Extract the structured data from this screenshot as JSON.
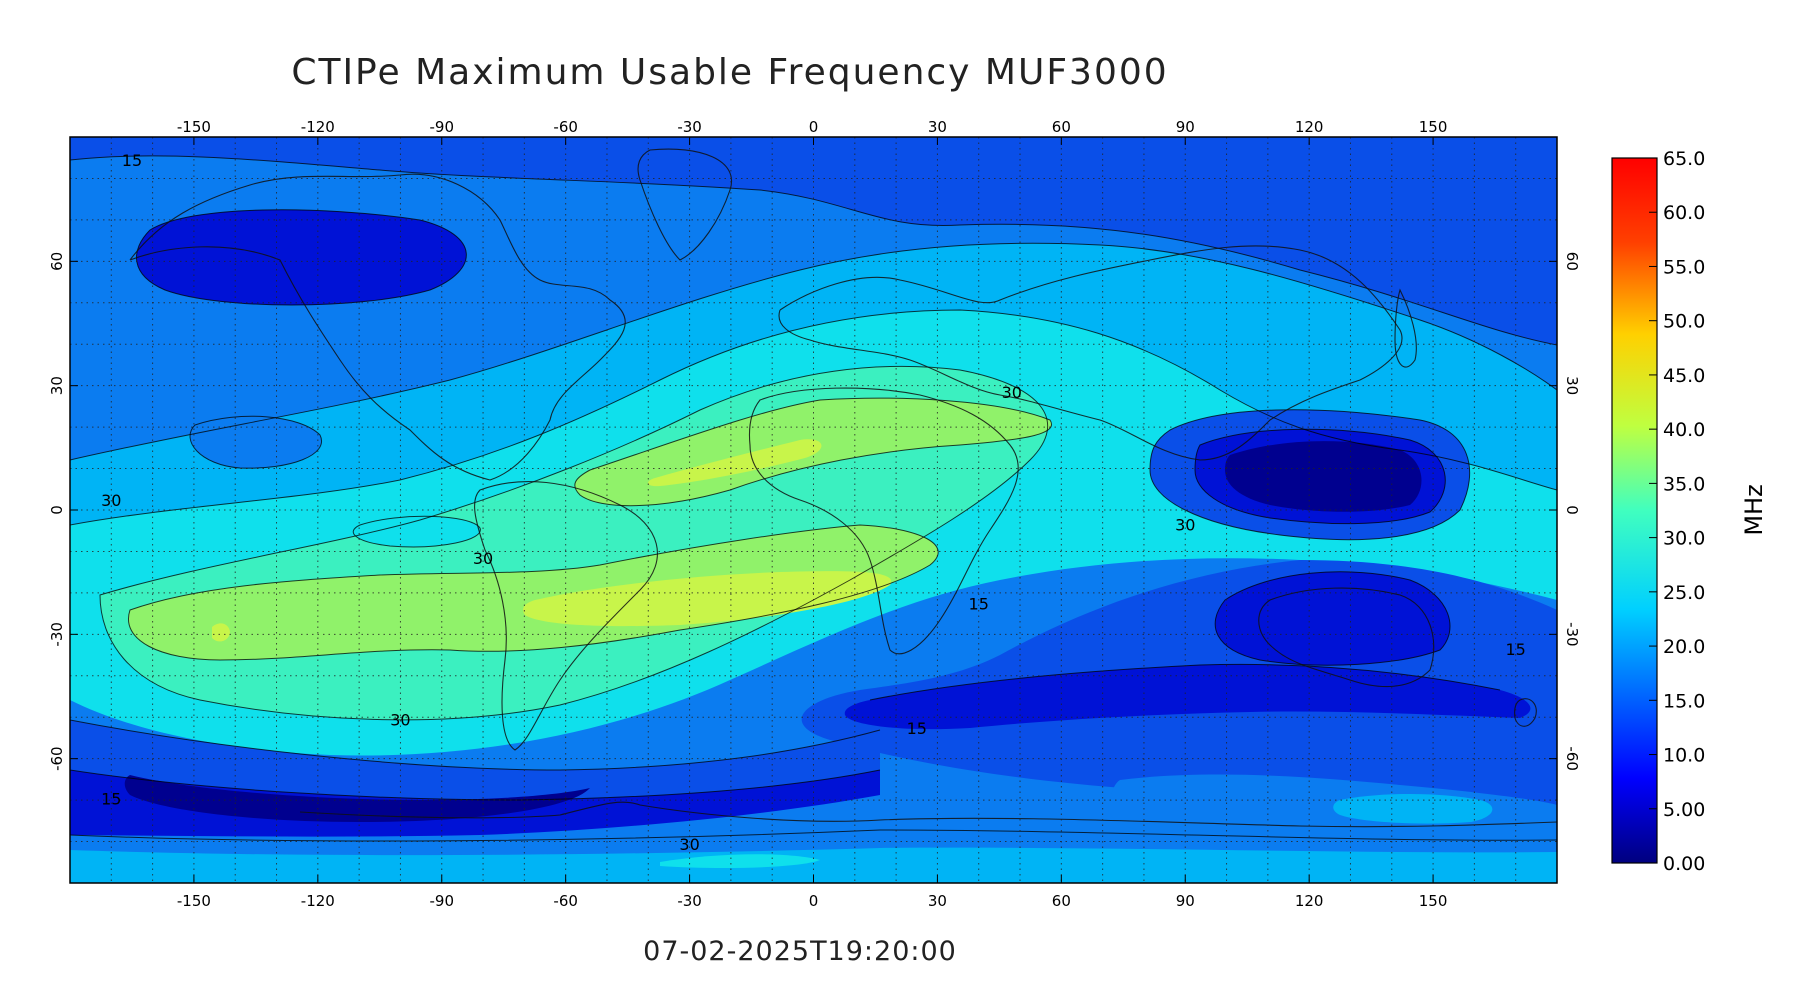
{
  "title": "CTIPe Maximum Usable Frequency MUF3000",
  "timestamp": "07-02-2025T19:20:00",
  "map": {
    "lon_ticks": [
      "-150",
      "-120",
      "-90",
      "-60",
      "-30",
      "0",
      "30",
      "60",
      "90",
      "120",
      "150"
    ],
    "lon_values": [
      -150,
      -120,
      -90,
      -60,
      -30,
      0,
      30,
      60,
      90,
      120,
      150
    ],
    "lat_ticks": [
      "60",
      "30",
      "0",
      "-30",
      "-60"
    ],
    "lat_values": [
      60,
      30,
      0,
      -30,
      -60
    ],
    "lon_range": [
      -180,
      180
    ],
    "lat_range": [
      -90,
      90
    ],
    "grid": true,
    "contour_labels": [
      "15",
      "30",
      "30",
      "30",
      "30",
      "15",
      "15",
      "30",
      "30",
      "15",
      "15"
    ]
  },
  "colorbar": {
    "unit": "MHz",
    "ticks": [
      "65.0",
      "60.0",
      "55.0",
      "50.0",
      "45.0",
      "40.0",
      "35.0",
      "30.0",
      "25.0",
      "20.0",
      "15.0",
      "10.0",
      "5.00",
      "0.00"
    ],
    "tick_values": [
      65,
      60,
      55,
      50,
      45,
      40,
      35,
      30,
      25,
      20,
      15,
      10,
      5,
      0
    ],
    "range": [
      0,
      65
    ]
  },
  "colors": {
    "band_0_5": "#00008f",
    "band_5_10": "#0012d6",
    "band_10_15": "#0a4fe8",
    "band_15_20": "#0b7cf0",
    "band_20_25": "#00b4f5",
    "band_25_30": "#0fe0ec",
    "band_30_35": "#3bf0c0",
    "band_35_40": "#90f26a",
    "band_40_45": "#c8f54a"
  }
}
